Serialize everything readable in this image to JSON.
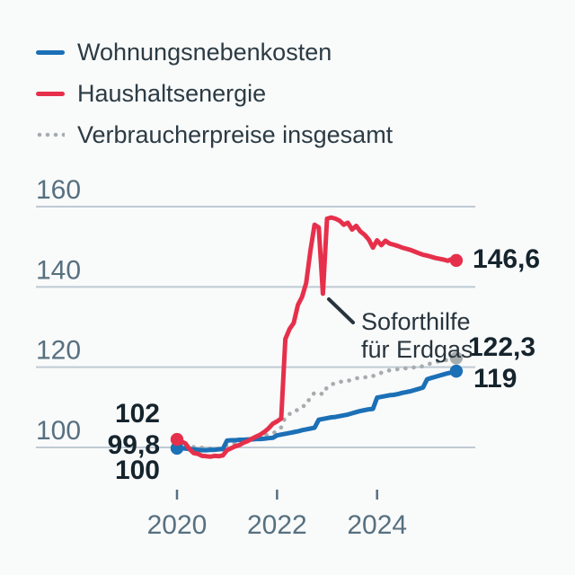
{
  "chart_data": {
    "type": "line",
    "x_unit": "month",
    "x_start": "2020-01",
    "x_end": "2025-08",
    "x_ticks": [
      2020,
      2022,
      2024
    ],
    "y_ticks": [
      100,
      120,
      140,
      160
    ],
    "y_range": [
      96,
      162
    ],
    "grid": "horizontal",
    "legend_position": "top-left",
    "series": [
      {
        "id": "wohnungsnebenkosten",
        "name": "Wohnungsnebenkosten",
        "color": "#1b70b6",
        "style": "solid",
        "marker_start": true,
        "marker_end": true,
        "start_label": "99,8",
        "end_label": "119",
        "values": [
          99.8,
          99.8,
          99.7,
          99.6,
          99.5,
          99.4,
          99.3,
          99.3,
          99.4,
          99.4,
          99.5,
          99.6,
          101.7,
          101.8,
          101.8,
          101.9,
          101.9,
          102.0,
          102.0,
          102.1,
          102.1,
          102.2,
          102.3,
          102.4,
          103.0,
          103.2,
          103.4,
          103.6,
          103.8,
          104.0,
          104.3,
          104.5,
          104.7,
          104.9,
          106.9,
          107.1,
          107.3,
          107.5,
          107.6,
          107.8,
          108.0,
          108.2,
          108.5,
          108.8,
          109.1,
          109.3,
          109.5,
          109.6,
          112.4,
          112.6,
          112.8,
          113.0,
          113.1,
          113.3,
          113.6,
          113.8,
          114.0,
          114.3,
          114.6,
          114.9,
          117.0,
          117.3,
          117.6,
          117.9,
          118.2,
          118.5,
          118.7,
          119.0
        ]
      },
      {
        "id": "haushaltsenergie",
        "name": "Haushaltsenergie",
        "color": "#e6304b",
        "style": "solid",
        "marker_start": true,
        "marker_end": true,
        "start_label": "102",
        "end_label": "146,6",
        "values": [
          102.0,
          101.5,
          101.0,
          99.6,
          98.6,
          98.4,
          97.9,
          97.8,
          97.7,
          97.9,
          97.8,
          98.0,
          99.3,
          99.8,
          100.3,
          100.6,
          101.2,
          101.6,
          102.2,
          102.7,
          103.2,
          103.9,
          104.8,
          105.9,
          106.5,
          107.2,
          127.0,
          129.5,
          131.0,
          135.5,
          137.5,
          141.0,
          149.0,
          155.5,
          154.8,
          138.3,
          157.0,
          157.3,
          157.0,
          156.5,
          155.5,
          156.0,
          154.3,
          155.2,
          153.8,
          153.0,
          151.8,
          149.8,
          151.6,
          150.4,
          151.5,
          150.8,
          150.5,
          150.2,
          149.8,
          149.5,
          149.2,
          148.8,
          148.4,
          148.0,
          147.8,
          147.5,
          147.2,
          147.0,
          146.8,
          146.5,
          147.0,
          146.6
        ]
      },
      {
        "id": "verbraucherpreise",
        "name": "Verbraucherpreise insgesamt",
        "color": "#a7acaf",
        "style": "dotted",
        "marker_start": false,
        "marker_end": true,
        "start_label": "100",
        "end_label": "122,3",
        "values": [
          100.0,
          100.1,
          100.1,
          100.2,
          100.1,
          100.2,
          99.9,
          99.8,
          99.7,
          99.8,
          99.7,
          100.1,
          100.5,
          100.8,
          101.0,
          101.3,
          101.6,
          101.9,
          102.2,
          102.3,
          102.5,
          103.0,
          103.2,
          103.5,
          104.1,
          105.0,
          107.6,
          108.3,
          109.2,
          109.3,
          110.2,
          110.5,
          112.6,
          113.6,
          113.7,
          113.2,
          115.0,
          115.6,
          116.1,
          116.4,
          116.3,
          116.6,
          116.9,
          117.2,
          117.5,
          117.5,
          117.4,
          117.8,
          118.1,
          118.6,
          119.0,
          119.2,
          119.3,
          119.5,
          119.8,
          119.7,
          119.7,
          120.0,
          119.9,
          120.3,
          120.6,
          121.0,
          121.3,
          121.5,
          121.6,
          121.9,
          122.1,
          122.3
        ]
      }
    ],
    "annotation": {
      "line1": "Soforthilfe",
      "line2": "für Erdgas",
      "target": "2022-12"
    },
    "colors": {
      "background": "#f9fafa",
      "gridline": "#bfcad3",
      "axis_text": "#567080",
      "label_text": "#15242d",
      "annotation_text": "#27343d"
    }
  }
}
